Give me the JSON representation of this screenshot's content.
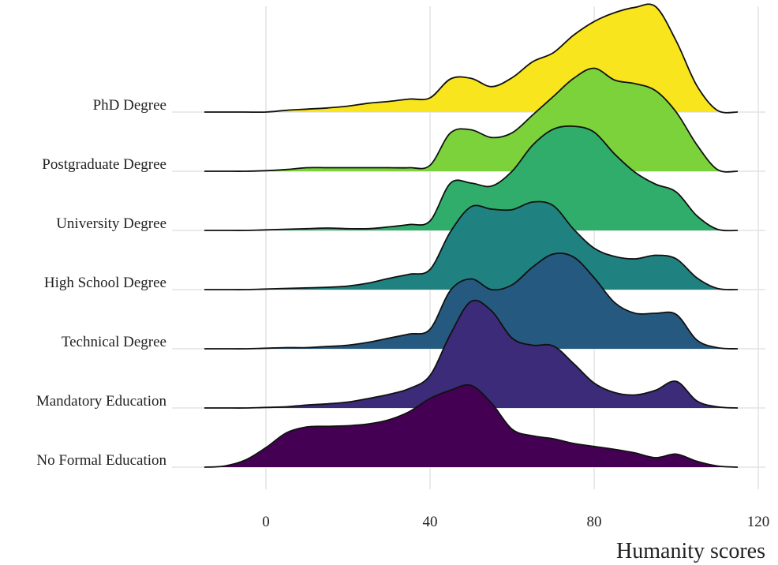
{
  "chart_data": {
    "type": "ridgeline",
    "title": "",
    "xlabel": "Humanity scores",
    "ylabel": "",
    "xlim": [
      -15,
      115
    ],
    "x_ticks": [
      "0",
      "40",
      "80",
      "120"
    ],
    "x_tick_values": [
      0,
      40,
      80,
      120
    ],
    "grid": true,
    "x_grid": [
      -15,
      -10,
      -5,
      0,
      5,
      10,
      15,
      20,
      25,
      30,
      35,
      40,
      45,
      50,
      55,
      60,
      65,
      70,
      75,
      80,
      85,
      90,
      95,
      100,
      105,
      110,
      115
    ],
    "series": [
      {
        "name": "No Formal Education",
        "color": "#440154",
        "density": [
          0,
          0.02,
          0.12,
          0.33,
          0.58,
          0.68,
          0.69,
          0.7,
          0.73,
          0.8,
          0.94,
          1.16,
          1.3,
          1.38,
          1.08,
          0.64,
          0.53,
          0.48,
          0.4,
          0.35,
          0.3,
          0.24,
          0.16,
          0.22,
          0.1,
          0.02,
          0
        ]
      },
      {
        "name": "Mandatory Education",
        "color": "#3B2B78",
        "density": [
          0,
          0,
          0,
          0.01,
          0.02,
          0.05,
          0.07,
          0.1,
          0.16,
          0.23,
          0.33,
          0.55,
          1.25,
          1.8,
          1.64,
          1.18,
          1.06,
          1.05,
          0.75,
          0.42,
          0.26,
          0.22,
          0.3,
          0.45,
          0.12,
          0.02,
          0
        ]
      },
      {
        "name": "Technical Degree",
        "color": "#26597F",
        "density": [
          0,
          0,
          0,
          0.01,
          0.02,
          0.02,
          0.04,
          0.06,
          0.11,
          0.18,
          0.25,
          0.33,
          0.99,
          1.18,
          1.0,
          1.08,
          1.38,
          1.6,
          1.55,
          1.2,
          0.78,
          0.6,
          0.6,
          0.58,
          0.15,
          0.02,
          0
        ]
      },
      {
        "name": "High School Degree",
        "color": "#1F8280",
        "density": [
          0,
          0,
          0,
          0.01,
          0.02,
          0.03,
          0.04,
          0.06,
          0.11,
          0.19,
          0.26,
          0.34,
          0.98,
          1.4,
          1.36,
          1.35,
          1.48,
          1.42,
          1.02,
          0.7,
          0.56,
          0.52,
          0.58,
          0.52,
          0.2,
          0.02,
          0
        ]
      },
      {
        "name": "University Degree",
        "color": "#30AD6A",
        "density": [
          0,
          0,
          0,
          0.01,
          0.02,
          0.03,
          0.04,
          0.03,
          0.03,
          0.06,
          0.1,
          0.16,
          0.8,
          0.8,
          0.75,
          1.0,
          1.44,
          1.71,
          1.76,
          1.66,
          1.29,
          0.98,
          0.78,
          0.65,
          0.25,
          0.02,
          0
        ]
      },
      {
        "name": "Postgraduate Degree",
        "color": "#7BD23B",
        "density": [
          0,
          0,
          0,
          0.01,
          0.03,
          0.06,
          0.06,
          0.06,
          0.06,
          0.06,
          0.06,
          0.1,
          0.65,
          0.7,
          0.57,
          0.65,
          0.95,
          1.26,
          1.57,
          1.74,
          1.54,
          1.48,
          1.36,
          1.0,
          0.45,
          0.03,
          0
        ]
      },
      {
        "name": "PhD Degree",
        "color": "#F9E51E",
        "density": [
          0,
          0,
          0,
          0,
          0.03,
          0.05,
          0.07,
          0.1,
          0.15,
          0.18,
          0.22,
          0.24,
          0.56,
          0.57,
          0.43,
          0.58,
          0.85,
          1.0,
          1.3,
          1.53,
          1.68,
          1.77,
          1.78,
          1.2,
          0.45,
          0.03,
          0
        ]
      }
    ]
  }
}
